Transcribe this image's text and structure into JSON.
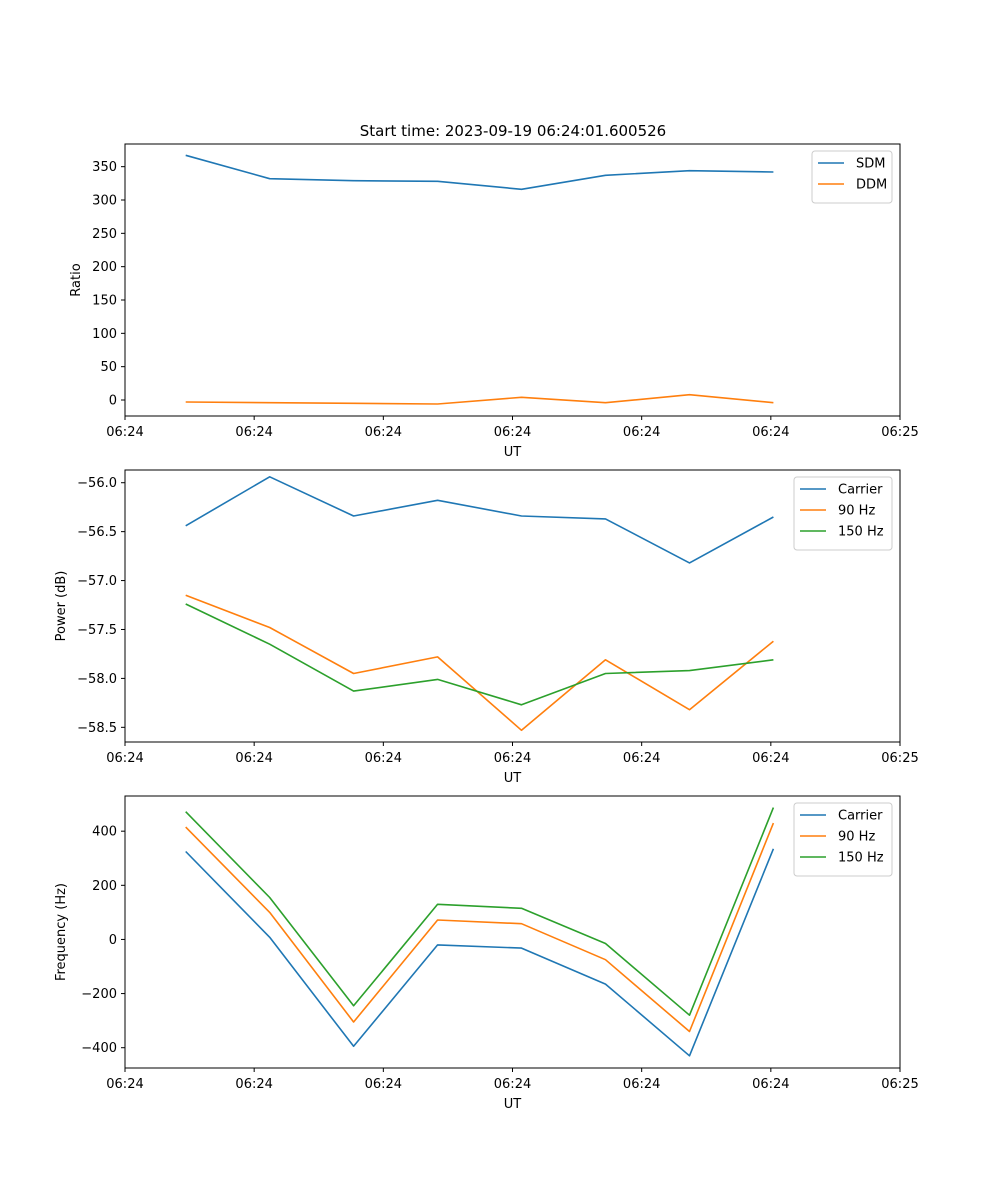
{
  "figure_title": "Start time: 2023-09-19 06:24:01.600526",
  "chart_data": [
    {
      "type": "line",
      "title": "Start time: 2023-09-19 06:24:01.600526",
      "xlabel": "UT",
      "ylabel": "Ratio",
      "xlim": [
        0,
        6
      ],
      "ylim": [
        -24,
        384
      ],
      "x": [
        0.47,
        1.12,
        1.77,
        2.42,
        3.07,
        3.72,
        4.37,
        5.02
      ],
      "x_tick_values": [
        0,
        1,
        2,
        3,
        4,
        5,
        6
      ],
      "x_tick_labels": [
        "06:24",
        "06:24",
        "06:24",
        "06:24",
        "06:24",
        "06:24",
        "06:25"
      ],
      "y_tick_values": [
        0,
        50,
        100,
        150,
        200,
        250,
        300,
        350
      ],
      "y_tick_labels": [
        "0",
        "50",
        "100",
        "150",
        "200",
        "250",
        "300",
        "350"
      ],
      "legend_position": "top-right",
      "series": [
        {
          "name": "SDM",
          "color": "#1f77b4",
          "values": [
            367,
            332,
            329,
            328,
            316,
            337,
            344,
            342
          ]
        },
        {
          "name": "DDM",
          "color": "#ff7f0e",
          "values": [
            -3,
            -4,
            -5,
            -6,
            4,
            -4,
            8,
            -4
          ]
        }
      ]
    },
    {
      "type": "line",
      "title": "",
      "xlabel": "UT",
      "ylabel": "Power (dB)",
      "xlim": [
        0,
        6
      ],
      "ylim": [
        -58.65,
        -55.87
      ],
      "x": [
        0.47,
        1.12,
        1.77,
        2.42,
        3.07,
        3.72,
        4.37,
        5.02
      ],
      "x_tick_values": [
        0,
        1,
        2,
        3,
        4,
        5,
        6
      ],
      "x_tick_labels": [
        "06:24",
        "06:24",
        "06:24",
        "06:24",
        "06:24",
        "06:24",
        "06:25"
      ],
      "y_tick_values": [
        -56.0,
        -56.5,
        -57.0,
        -57.5,
        -58.0,
        -58.5
      ],
      "y_tick_labels": [
        "−56.0",
        "−56.5",
        "−57.0",
        "−57.5",
        "−58.0",
        "−58.5"
      ],
      "legend_position": "top-right",
      "series": [
        {
          "name": "Carrier",
          "color": "#1f77b4",
          "values": [
            -56.44,
            -55.94,
            -56.34,
            -56.18,
            -56.34,
            -56.37,
            -56.82,
            -56.35
          ]
        },
        {
          "name": "90 Hz",
          "color": "#ff7f0e",
          "values": [
            -57.15,
            -57.48,
            -57.95,
            -57.78,
            -58.53,
            -57.81,
            -58.32,
            -57.62
          ]
        },
        {
          "name": "150 Hz",
          "color": "#2ca02c",
          "values": [
            -57.24,
            -57.65,
            -58.13,
            -58.01,
            -58.27,
            -57.95,
            -57.92,
            -57.81
          ]
        }
      ]
    },
    {
      "type": "line",
      "title": "",
      "xlabel": "UT",
      "ylabel": "Frequency (Hz)",
      "xlim": [
        0,
        6
      ],
      "ylim": [
        -475,
        530
      ],
      "x": [
        0.47,
        1.12,
        1.77,
        2.42,
        3.07,
        3.72,
        4.37,
        5.02
      ],
      "x_tick_values": [
        0,
        1,
        2,
        3,
        4,
        5,
        6
      ],
      "x_tick_labels": [
        "06:24",
        "06:24",
        "06:24",
        "06:24",
        "06:24",
        "06:24",
        "06:25"
      ],
      "y_tick_values": [
        -400,
        -200,
        0,
        200,
        400
      ],
      "y_tick_labels": [
        "−400",
        "−200",
        "0",
        "200",
        "400"
      ],
      "legend_position": "top-right",
      "series": [
        {
          "name": "Carrier",
          "color": "#1f77b4",
          "values": [
            325,
            8,
            -395,
            -20,
            -32,
            -165,
            -430,
            335
          ]
        },
        {
          "name": "90 Hz",
          "color": "#ff7f0e",
          "values": [
            415,
            100,
            -305,
            72,
            58,
            -75,
            -340,
            430
          ]
        },
        {
          "name": "150 Hz",
          "color": "#2ca02c",
          "values": [
            472,
            155,
            -245,
            130,
            115,
            -15,
            -280,
            487
          ]
        }
      ]
    }
  ]
}
